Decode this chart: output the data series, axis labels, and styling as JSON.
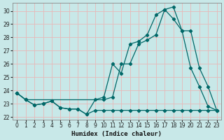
{
  "xlabel": "Humidex (Indice chaleur)",
  "bg_color": "#c8e8e8",
  "line_color": "#006868",
  "grid_color": "#e8b8b8",
  "xlim": [
    -0.5,
    23.5
  ],
  "ylim": [
    21.8,
    30.6
  ],
  "xticks": [
    0,
    1,
    2,
    3,
    4,
    5,
    6,
    7,
    8,
    9,
    10,
    11,
    12,
    13,
    14,
    15,
    16,
    17,
    18,
    19,
    20,
    21,
    22,
    23
  ],
  "yticks": [
    22,
    23,
    24,
    25,
    26,
    27,
    28,
    29,
    30
  ],
  "line1_x": [
    0,
    1,
    2,
    3,
    4,
    5,
    6,
    7,
    8,
    9,
    10,
    11,
    12,
    13,
    14,
    15,
    16,
    17,
    18,
    19,
    20,
    21,
    22,
    23
  ],
  "line1_y": [
    23.8,
    23.3,
    22.9,
    23.0,
    23.2,
    22.7,
    22.6,
    22.6,
    22.2,
    22.5,
    22.5,
    22.5,
    22.5,
    22.5,
    22.5,
    22.5,
    22.5,
    22.5,
    22.5,
    22.5,
    22.5,
    22.5,
    22.5,
    22.5
  ],
  "line2_x": [
    0,
    1,
    2,
    3,
    4,
    5,
    6,
    7,
    8,
    9,
    10,
    11,
    12,
    13,
    14,
    15,
    16,
    17,
    18,
    19,
    20,
    21,
    22,
    23
  ],
  "line2_y": [
    23.8,
    23.3,
    22.9,
    23.0,
    23.2,
    22.7,
    22.6,
    22.6,
    22.2,
    23.3,
    23.5,
    26.0,
    25.3,
    27.5,
    27.7,
    28.2,
    29.7,
    30.1,
    29.4,
    28.5,
    25.7,
    24.3,
    22.8,
    22.5
  ],
  "line3_x": [
    0,
    1,
    10,
    11,
    12,
    13,
    14,
    15,
    16,
    17,
    18,
    19,
    20,
    21,
    22,
    23
  ],
  "line3_y": [
    23.8,
    23.3,
    23.3,
    23.5,
    26.0,
    26.0,
    27.5,
    27.8,
    28.2,
    30.1,
    30.3,
    28.5,
    28.5,
    25.7,
    24.3,
    22.5
  ]
}
